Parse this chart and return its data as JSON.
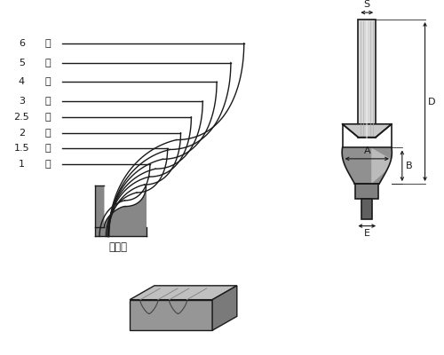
{
  "bg_color": "#ffffff",
  "line_color": "#1a1a1a",
  "sizes": [
    "6",
    "5",
    "4",
    "3",
    "2.5",
    "2",
    "1.5",
    "1"
  ],
  "label_suffix": "分",
  "workpiece_label": "被削材",
  "dim_labels": [
    "S",
    "D",
    "A",
    "B",
    "E"
  ],
  "label_fontsize": 8,
  "dim_fontsize": 8,
  "lw": 1.0,
  "lw_bit": 1.2
}
